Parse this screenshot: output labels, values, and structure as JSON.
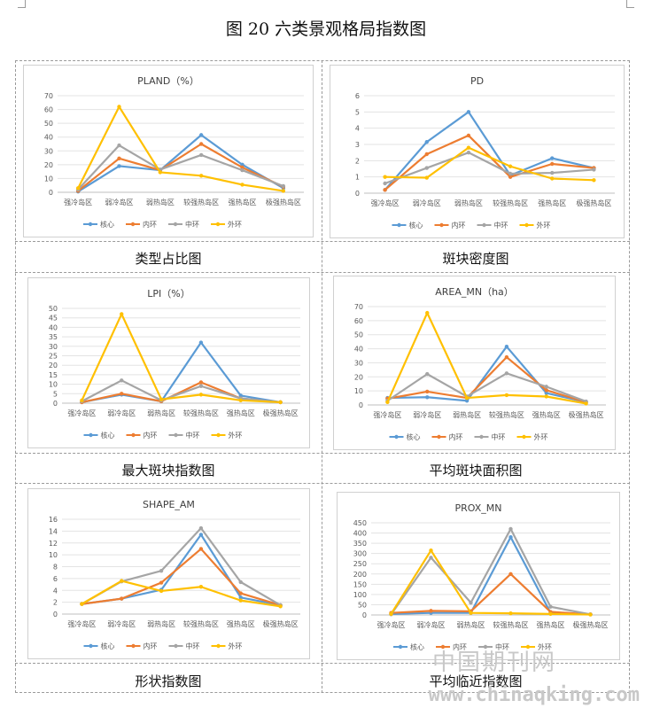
{
  "page_title": "图 20  六类景观格局指数图",
  "captions": [
    "类型占比图",
    "斑块密度图",
    "最大斑块指数图",
    "平均斑块面积图",
    "形状指数图",
    "平均临近指数图"
  ],
  "colors": {
    "核心": "#5b9bd5",
    "内环": "#ed7d31",
    "中环": "#a5a5a5",
    "外环": "#ffc000"
  },
  "watermark": {
    "cn": "中国期刊网",
    "url": "www.chinaqking.com"
  },
  "chart_data": [
    {
      "type": "line",
      "title": "PLAND（%）",
      "categories": [
        "强冷岛区",
        "弱冷岛区",
        "弱热岛区",
        "较强热岛区",
        "强热岛区",
        "极强热岛区"
      ],
      "ylim": [
        0,
        70
      ],
      "yticks": [
        0,
        10,
        20,
        30,
        40,
        50,
        60,
        70
      ],
      "series": [
        {
          "name": "核心",
          "values": [
            0.5,
            19,
            16,
            41.5,
            20,
            3
          ]
        },
        {
          "name": "内环",
          "values": [
            1,
            24.5,
            16,
            35,
            18,
            4
          ]
        },
        {
          "name": "中环",
          "values": [
            2,
            34,
            16.5,
            27,
            16,
            4.5
          ]
        },
        {
          "name": "外环",
          "values": [
            3,
            62,
            14.5,
            12,
            5.5,
            1
          ]
        }
      ]
    },
    {
      "type": "line",
      "title": "PD",
      "categories": [
        "强冷岛区",
        "弱冷岛区",
        "弱热岛区",
        "较强热岛区",
        "强热岛区",
        "极强热岛区"
      ],
      "ylim": [
        0,
        6
      ],
      "yticks": [
        0,
        1,
        2,
        3,
        4,
        5,
        6
      ],
      "series": [
        {
          "name": "核心",
          "values": [
            0.2,
            3.15,
            5,
            1.1,
            2.15,
            1.55
          ]
        },
        {
          "name": "内环",
          "values": [
            0.2,
            2.4,
            3.55,
            1.0,
            1.8,
            1.55
          ]
        },
        {
          "name": "中环",
          "values": [
            0.6,
            1.55,
            2.5,
            1.2,
            1.25,
            1.45
          ]
        },
        {
          "name": "外环",
          "values": [
            1.0,
            0.95,
            2.8,
            1.65,
            0.9,
            0.8
          ]
        }
      ]
    },
    {
      "type": "line",
      "title": "LPI（%）",
      "categories": [
        "强冷岛区",
        "弱冷岛区",
        "弱热岛区",
        "较强热岛区",
        "强热岛区",
        "极强热岛区"
      ],
      "ylim": [
        0,
        50
      ],
      "yticks": [
        0,
        5,
        10,
        15,
        20,
        25,
        30,
        35,
        40,
        45,
        50
      ],
      "series": [
        {
          "name": "核心",
          "values": [
            0.5,
            4.5,
            1,
            32,
            4,
            0.5
          ]
        },
        {
          "name": "内环",
          "values": [
            0.5,
            5,
            1,
            11,
            2.5,
            0.5
          ]
        },
        {
          "name": "中环",
          "values": [
            1,
            12,
            1.5,
            9,
            2.5,
            0.5
          ]
        },
        {
          "name": "外环",
          "values": [
            1.5,
            47,
            2,
            4.5,
            1.5,
            0.5
          ]
        }
      ]
    },
    {
      "type": "line",
      "title": "AREA_MN（ha）",
      "categories": [
        "强冷岛区",
        "弱冷岛区",
        "弱热岛区",
        "较强热岛区",
        "强热岛区",
        "极强热岛区"
      ],
      "ylim": [
        0,
        70
      ],
      "yticks": [
        0,
        10,
        20,
        30,
        40,
        50,
        60,
        70
      ],
      "series": [
        {
          "name": "核心",
          "values": [
            5,
            5.5,
            3,
            41.5,
            8.5,
            2
          ]
        },
        {
          "name": "内环",
          "values": [
            4.5,
            9.5,
            5,
            34,
            10.5,
            2
          ]
        },
        {
          "name": "中环",
          "values": [
            3,
            22,
            6,
            22.5,
            13,
            2.5
          ]
        },
        {
          "name": "外环",
          "values": [
            2,
            65.5,
            5,
            7,
            6,
            1
          ]
        }
      ]
    },
    {
      "type": "line",
      "title": "SHAPE_AM",
      "categories": [
        "强冷岛区",
        "弱冷岛区",
        "弱热岛区",
        "较强热岛区",
        "强热岛区",
        "极强热岛区"
      ],
      "ylim": [
        0,
        16
      ],
      "yticks": [
        0,
        2,
        4,
        6,
        8,
        10,
        12,
        14,
        16
      ],
      "series": [
        {
          "name": "核心",
          "values": [
            1.7,
            2.6,
            4.1,
            13.4,
            2.8,
            1.5
          ]
        },
        {
          "name": "内环",
          "values": [
            1.7,
            2.6,
            5.3,
            11,
            3.5,
            1.5
          ]
        },
        {
          "name": "中环",
          "values": [
            1.7,
            5.5,
            7.3,
            14.5,
            5.4,
            1.5
          ]
        },
        {
          "name": "外环",
          "values": [
            1.7,
            5.6,
            3.9,
            4.6,
            2.3,
            1.3
          ]
        }
      ]
    },
    {
      "type": "line",
      "title": "PROX_MN",
      "categories": [
        "强冷岛区",
        "弱冷岛区",
        "弱热岛区",
        "较强热岛区",
        "强热岛区",
        "极强热岛区"
      ],
      "ylim": [
        0,
        450
      ],
      "yticks": [
        0,
        50,
        100,
        150,
        200,
        250,
        300,
        350,
        400,
        450
      ],
      "series": [
        {
          "name": "核心",
          "values": [
            5,
            10,
            10,
            380,
            10,
            3
          ]
        },
        {
          "name": "内环",
          "values": [
            10,
            20,
            18,
            200,
            15,
            3
          ]
        },
        {
          "name": "中环",
          "values": [
            3,
            280,
            60,
            420,
            40,
            3
          ]
        },
        {
          "name": "外环",
          "values": [
            5,
            315,
            10,
            8,
            5,
            2
          ]
        }
      ]
    }
  ]
}
